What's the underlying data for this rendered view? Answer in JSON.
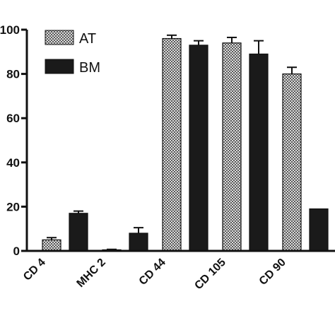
{
  "chart_data": {
    "type": "bar",
    "categories": [
      "CD 4",
      "MHC 2",
      "CD 44",
      "CD 105",
      "CD 90"
    ],
    "series": [
      {
        "name": "AT",
        "values": [
          5,
          0.5,
          96,
          94,
          80
        ],
        "errors": [
          1,
          0.2,
          1.5,
          2.5,
          3
        ],
        "pattern": "checker"
      },
      {
        "name": "BM",
        "values": [
          17,
          8,
          93,
          89,
          19
        ],
        "errors": [
          1,
          2.5,
          2,
          6,
          0
        ],
        "pattern": "solid"
      }
    ],
    "y_ticks": [
      "0",
      "20",
      "40",
      "60",
      "80",
      "100"
    ],
    "ylim": [
      0,
      100
    ],
    "legend_position": "top-left",
    "colors": {
      "solid": "#1a1a1a",
      "checker_dark": "#5a5a5a",
      "checker_light": "#dcdcdc",
      "axis": "#111111"
    }
  }
}
